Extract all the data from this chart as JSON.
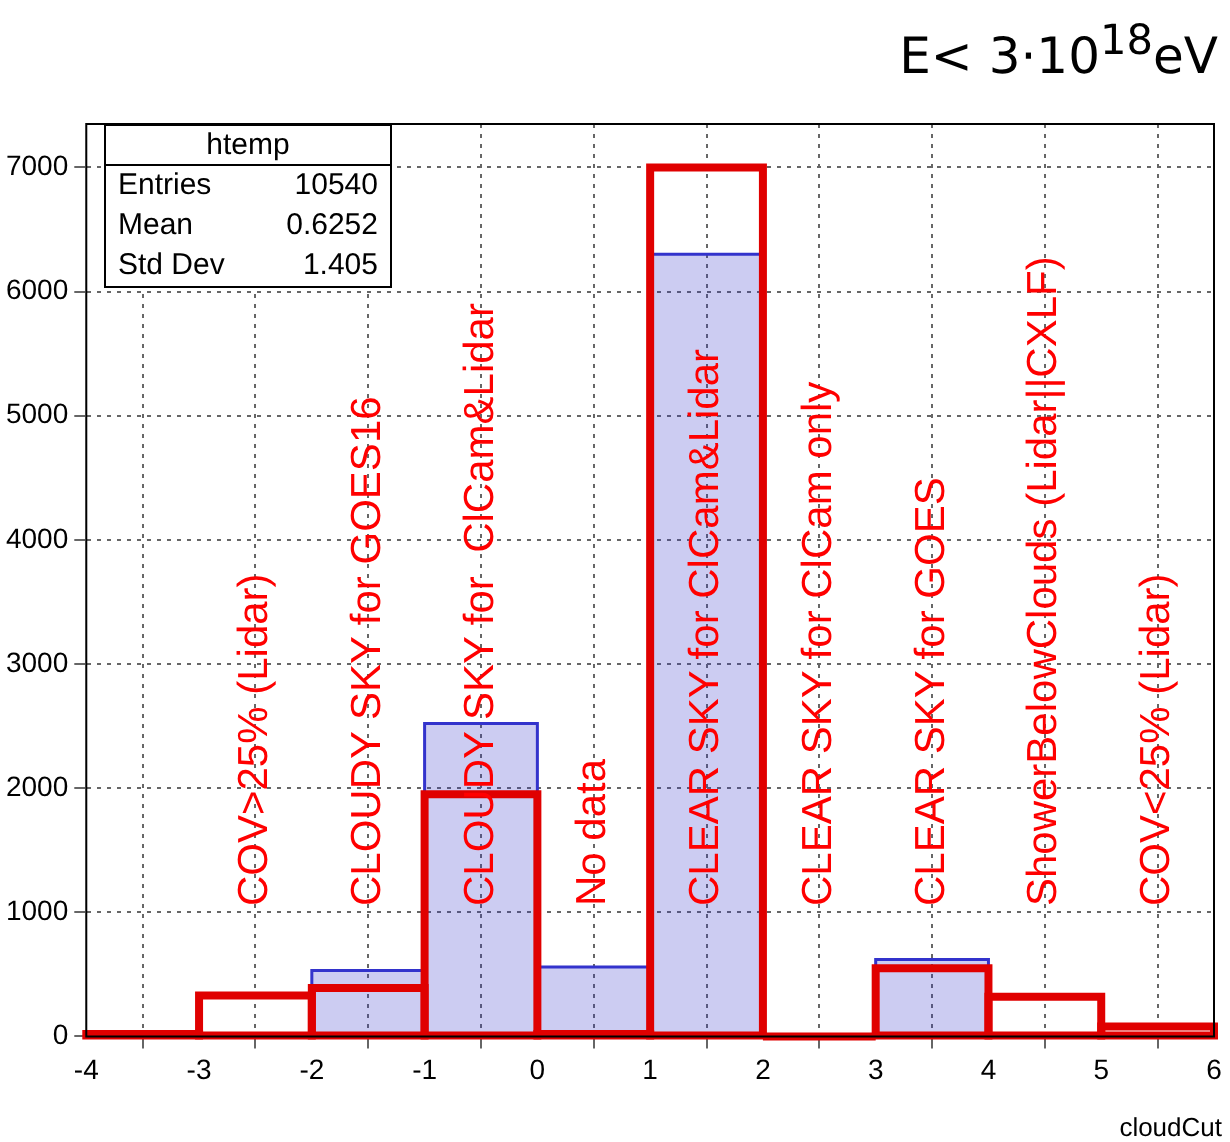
{
  "chart_data": {
    "type": "histogram",
    "title": "E< 3·10$^{18}$eV",
    "xlabel": "cloudCut",
    "bins": [
      -4,
      -3,
      -2,
      -1,
      0,
      1,
      2,
      3,
      4,
      5,
      6
    ],
    "series": [
      {
        "color": "#3333cc",
        "values": [
          null,
          null,
          530,
          2520,
          560,
          6300,
          null,
          620,
          null,
          null
        ]
      },
      {
        "color": "#e00000",
        "values": [
          20,
          330,
          390,
          1950,
          20,
          7000,
          0,
          550,
          320,
          80
        ]
      }
    ],
    "xlim": [
      -4,
      6
    ],
    "xticks": [
      -4,
      -3,
      -2,
      -1,
      0,
      1,
      2,
      3,
      4,
      5,
      6
    ],
    "ylim": [
      0,
      7350
    ],
    "yticks": [
      0,
      1000,
      2000,
      3000,
      4000,
      5000,
      6000,
      7000
    ],
    "grid": true,
    "annotations": [
      "htemp",
      "Entries",
      "10540",
      "Mean",
      "0.6252",
      "Std Dev",
      "1.405",
      "COV>25% (Lidar)",
      "CLOUDY SKY for GOES16",
      "CLOUDY SKY for  ClCam&Lidar",
      "No data",
      "CLEAR SKY for ClCam&Lidar",
      "CLEAR SKY for ClCam only",
      "CLEAR SKY for GOES",
      "ShowerBelowClouds (Lidar||CXLF)",
      "COV<25% (Lidar)"
    ]
  }
}
